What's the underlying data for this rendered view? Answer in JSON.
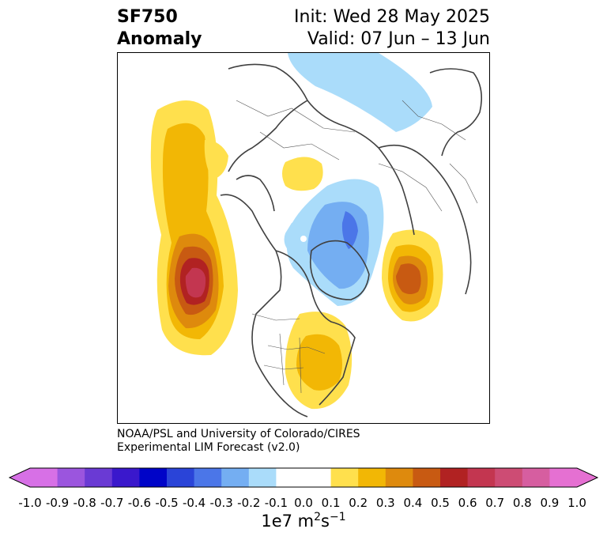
{
  "header": {
    "title_line1": "SF750",
    "title_line2": "Anomaly",
    "init": "Init: Wed 28 May 2025",
    "valid": "Valid: 07 Jun – 13 Jun"
  },
  "credit": {
    "line1": "NOAA/PSL and University of Colorado/CIRES",
    "line2": "Experimental LIM Forecast (v2.0)"
  },
  "colorbar": {
    "colors": [
      "#d770e6",
      "#9b55de",
      "#6a3ad4",
      "#3a18cc",
      "#0004c8",
      "#2a44d8",
      "#4b76e8",
      "#74aef2",
      "#aadcfa",
      "#ffffff",
      "#ffffff",
      "#ffe04d",
      "#f2b705",
      "#de8a0d",
      "#c85a12",
      "#b12222",
      "#c33650",
      "#cd4c74",
      "#d65ea0",
      "#e570d2"
    ],
    "tick_labels": [
      "-1.0",
      "-0.9",
      "-0.8",
      "-0.7",
      "-0.6",
      "-0.5",
      "-0.4",
      "-0.3",
      "-0.2",
      "-0.1",
      "0.0",
      "0.1",
      "0.2",
      "0.3",
      "0.4",
      "0.5",
      "0.6",
      "0.7",
      "0.8",
      "0.9",
      "1.0"
    ],
    "units_prefix": "1e7 m",
    "units_exp1": "2",
    "units_mid": "s",
    "units_exp2": "−1"
  },
  "map": {
    "positive_colors": [
      "#ffe04d",
      "#f2b705",
      "#de8a0d",
      "#c85a12",
      "#b12222",
      "#c33650"
    ],
    "negative_colors": [
      "#aadcfa",
      "#74aef2",
      "#4b76e8"
    ],
    "anomalies": [
      {
        "region": "northeast-pacific",
        "sign": "positive",
        "peak": 0.6
      },
      {
        "region": "eastern-united-states",
        "sign": "positive",
        "peak": 0.3
      },
      {
        "region": "northern-europe",
        "sign": "positive",
        "peak": 0.1
      },
      {
        "region": "north-atlantic-greenland",
        "sign": "negative",
        "peak": -0.4
      },
      {
        "region": "arctic-siberia",
        "sign": "negative",
        "peak": -0.2
      },
      {
        "region": "east-asia",
        "sign": "positive",
        "peak": 0.4
      }
    ]
  }
}
